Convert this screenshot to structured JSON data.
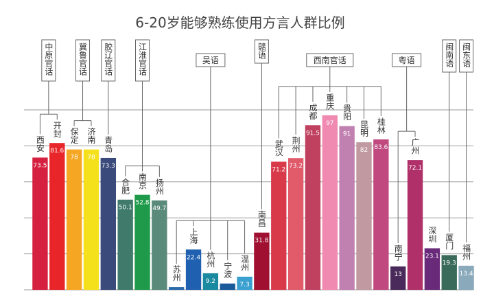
{
  "chart_data": {
    "type": "bar",
    "title": "6-20岁能够熟练使用方言人群比例",
    "categories": [
      "西安",
      "开封",
      "保定",
      "济南",
      "青岛",
      "合肥",
      "南京",
      "扬州",
      "苏州",
      "上海",
      "杭州",
      "宁波",
      "温州",
      "南昌",
      "武汉",
      "荆州",
      "成都",
      "重庆",
      "贵阳",
      "昆明",
      "桂林",
      "南宁",
      "广州",
      "深圳",
      "厦门",
      "福州"
    ],
    "values": [
      73.5,
      81.6,
      78,
      78,
      73.3,
      50.1,
      52.8,
      49.7,
      1.5,
      22.4,
      9.2,
      3.5,
      7.3,
      31.8,
      71.2,
      73.2,
      91.5,
      97,
      91,
      82,
      83.6,
      13,
      72.1,
      23.1,
      19.3,
      13.4
    ],
    "value_labels": [
      "73.5",
      "81.6",
      "78",
      "78",
      "73.3",
      "50.1",
      "52.8",
      "49.7",
      null,
      "22.4",
      "9.2",
      null,
      "7.3",
      "31.8",
      "71.2",
      "73.2",
      "91.5",
      "97",
      "91",
      "82",
      "83.6",
      "13",
      "72.1",
      "23.1",
      "19.3",
      "13.4"
    ],
    "colors": [
      "#d6203f",
      "#e8262a",
      "#f5a623",
      "#f5e01c",
      "#3a4a7a",
      "#3f7a6a",
      "#1f9a4a",
      "#5a8a7a",
      "#2a6aa8",
      "#2060b0",
      "#1a8aa0",
      "#1a5a9a",
      "#3aa0d0",
      "#a01030",
      "#d83a4a",
      "#e05a6a",
      "#c04060",
      "#f08ab0",
      "#c080b0",
      "#c09aa0",
      "#c04a80",
      "#4a2a5a",
      "#b0306a",
      "#6a2a7a",
      "#3a6a5a",
      "#8aaabb"
    ],
    "groups": [
      {
        "name": "中原官话",
        "start": 0,
        "end": 1,
        "vertical": true
      },
      {
        "name": "冀鲁官话",
        "start": 2,
        "end": 3,
        "vertical": true
      },
      {
        "name": "胶辽官话",
        "start": 4,
        "end": 4,
        "vertical": true
      },
      {
        "name": "江淮官话",
        "start": 5,
        "end": 7,
        "vertical": true
      },
      {
        "name": "吴语",
        "start": 8,
        "end": 12,
        "vertical": false
      },
      {
        "name": "赣语",
        "start": 13,
        "end": 13,
        "vertical": true
      },
      {
        "name": "西南官话",
        "start": 14,
        "end": 20,
        "vertical": false
      },
      {
        "name": "粤语",
        "start": 21,
        "end": 22,
        "vertical": false
      },
      {
        "name": "闽南语",
        "start": 24,
        "end": 24,
        "vertical": true
      },
      {
        "name": "闽东语",
        "start": 25,
        "end": 25,
        "vertical": true
      }
    ],
    "ylim": [
      0,
      100
    ],
    "yticks": [
      0,
      20,
      40,
      60,
      80,
      100
    ],
    "grid": true
  }
}
